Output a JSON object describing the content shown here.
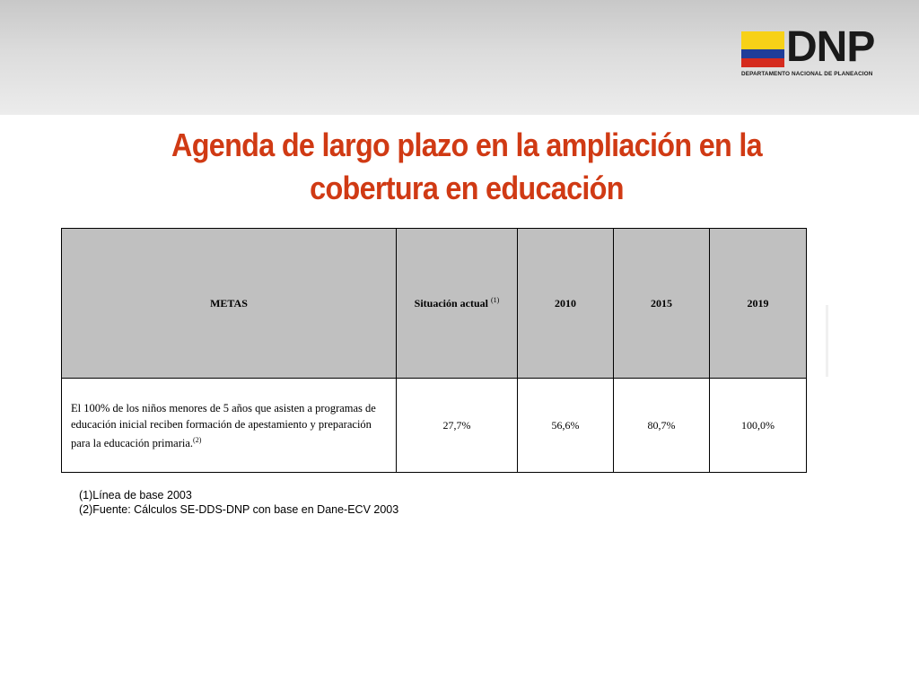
{
  "logo": {
    "word": "DNP",
    "subtitle": "DEPARTAMENTO NACIONAL DE PLANEACION",
    "flag_colors": [
      "#f7d117",
      "#1f3d99",
      "#d52b1e"
    ]
  },
  "title": "Agenda de largo plazo en la ampliación en la cobertura en educación",
  "table": {
    "headers": {
      "metas": "METAS",
      "situacion": "Situación actual",
      "situacion_sup": "(1)",
      "y2010": "2010",
      "y2015": "2015",
      "y2019": "2019"
    },
    "row": {
      "goal": "El 100% de los niños menores de 5 años que asisten a programas de educación inicial reciben formación de apestamiento y preparación para la educación primaria.",
      "goal_sup": "(2)",
      "situacion": "27,7%",
      "y2010": "56,6%",
      "y2015": "80,7%",
      "y2019": "100,0%"
    }
  },
  "notes": [
    "(1)Línea de base 2003",
    "(2)Fuente: Cálculos SE-DDS-DNP con base en Dane-ECV 2003"
  ],
  "colors": {
    "title": "#d03a14",
    "header_fill": "#c0c0c0"
  }
}
